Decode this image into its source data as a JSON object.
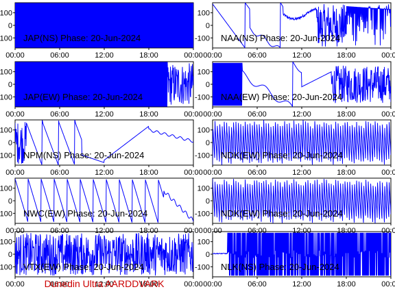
{
  "footer_label": "Dunedin Ultra AARDDVARK",
  "colors": {
    "trace": "#0000ff",
    "frame": "#000000",
    "footer": "#cc0000",
    "background": "#ffffff"
  },
  "chart_data": [
    {
      "type": "line",
      "title": "JAP(NS) Phase: 20-Jun-2024",
      "xlabel": "",
      "ylabel": "",
      "x_ticks": [
        "00:00",
        "06:00",
        "12:00",
        "18:00",
        "00:00"
      ],
      "xlim": [
        0,
        24
      ],
      "y_ticks": [
        100,
        0,
        -100
      ],
      "ylim": [
        -180,
        180
      ],
      "pattern": "solid"
    },
    {
      "type": "line",
      "title": "NAA(NS) Phase: 20-Jun-2024",
      "xlabel": "",
      "ylabel": "",
      "x_ticks": [
        "00:00",
        "06:00",
        "12:00",
        "18:00",
        "00:00"
      ],
      "xlim": [
        0,
        24
      ],
      "y_ticks": [
        100,
        0,
        -100
      ],
      "ylim": [
        -180,
        180
      ],
      "pattern": "naa_ns"
    },
    {
      "type": "line",
      "title": "JAP(EW) Phase: 20-Jun-2024",
      "xlabel": "",
      "ylabel": "",
      "x_ticks": [
        "00:00",
        "06:00",
        "12:00",
        "18:00",
        "00:00"
      ],
      "xlim": [
        0,
        24
      ],
      "y_ticks": [
        100,
        0,
        -100
      ],
      "ylim": [
        -180,
        180
      ],
      "pattern": "jap_ew"
    },
    {
      "type": "line",
      "title": "NAA(EW) Phase: 20-Jun-2024",
      "xlabel": "",
      "ylabel": "",
      "x_ticks": [
        "00:00",
        "06:00",
        "12:00",
        "18:00",
        "00:00"
      ],
      "xlim": [
        0,
        24
      ],
      "y_ticks": [
        100,
        0,
        -100
      ],
      "ylim": [
        -180,
        180
      ],
      "pattern": "naa_ew"
    },
    {
      "type": "line",
      "title": "NPM(NS) Phase: 20-Jun-2024",
      "xlabel": "",
      "ylabel": "",
      "x_ticks": [
        "00:00",
        "06:00",
        "12:00",
        "18:00",
        "00:00"
      ],
      "xlim": [
        0,
        24
      ],
      "y_ticks": [
        100,
        0,
        -100
      ],
      "ylim": [
        -180,
        180
      ],
      "pattern": "npm_ns"
    },
    {
      "type": "line",
      "title": "NDK(EW) Phase: 20-Jun-2024",
      "xlabel": "",
      "ylabel": "",
      "x_ticks": [
        "00:00",
        "06:00",
        "12:00",
        "18:00",
        "00:00"
      ],
      "xlim": [
        0,
        24
      ],
      "y_ticks": [
        100,
        0,
        -100
      ],
      "ylim": [
        -180,
        180
      ],
      "pattern": "sawtooth_fast"
    },
    {
      "type": "line",
      "title": "NWC(EW) Phase: 20-Jun-2024",
      "xlabel": "",
      "ylabel": "",
      "x_ticks": [
        "00:00",
        "06:00",
        "12:00",
        "18:00",
        "00:00"
      ],
      "xlim": [
        0,
        24
      ],
      "y_ticks": [
        100,
        0,
        -100
      ],
      "ylim": [
        -180,
        180
      ],
      "pattern": "sawtooth_slow"
    },
    {
      "type": "line",
      "title": "NDK(EW) Phase: 20-Jun-2024",
      "xlabel": "",
      "ylabel": "",
      "x_ticks": [
        "00:00",
        "06:00",
        "12:00",
        "18:00",
        "00:00"
      ],
      "xlim": [
        0,
        24
      ],
      "y_ticks": [
        100,
        0,
        -100
      ],
      "ylim": [
        -180,
        180
      ],
      "pattern": "sawtooth_fast"
    },
    {
      "type": "line",
      "title": "VTX(EW) Phase: 20-Jun-2024",
      "xlabel": "",
      "ylabel": "",
      "x_ticks": [
        "00:00",
        "06:00",
        "12:00",
        "18:00",
        "00:00"
      ],
      "xlim": [
        0,
        24
      ],
      "y_ticks": [
        100,
        0,
        -100
      ],
      "ylim": [
        -180,
        180
      ],
      "pattern": "noisy"
    },
    {
      "type": "line",
      "title": "NLK(NS) Phase: 20-Jun-2024",
      "xlabel": "",
      "ylabel": "",
      "x_ticks": [
        "00:00",
        "06:00",
        "12:00",
        "18:00",
        "00:00"
      ],
      "xlim": [
        0,
        24
      ],
      "y_ticks": [
        100,
        0,
        -100
      ],
      "ylim": [
        -180,
        180
      ],
      "pattern": "nlk_ns"
    }
  ]
}
